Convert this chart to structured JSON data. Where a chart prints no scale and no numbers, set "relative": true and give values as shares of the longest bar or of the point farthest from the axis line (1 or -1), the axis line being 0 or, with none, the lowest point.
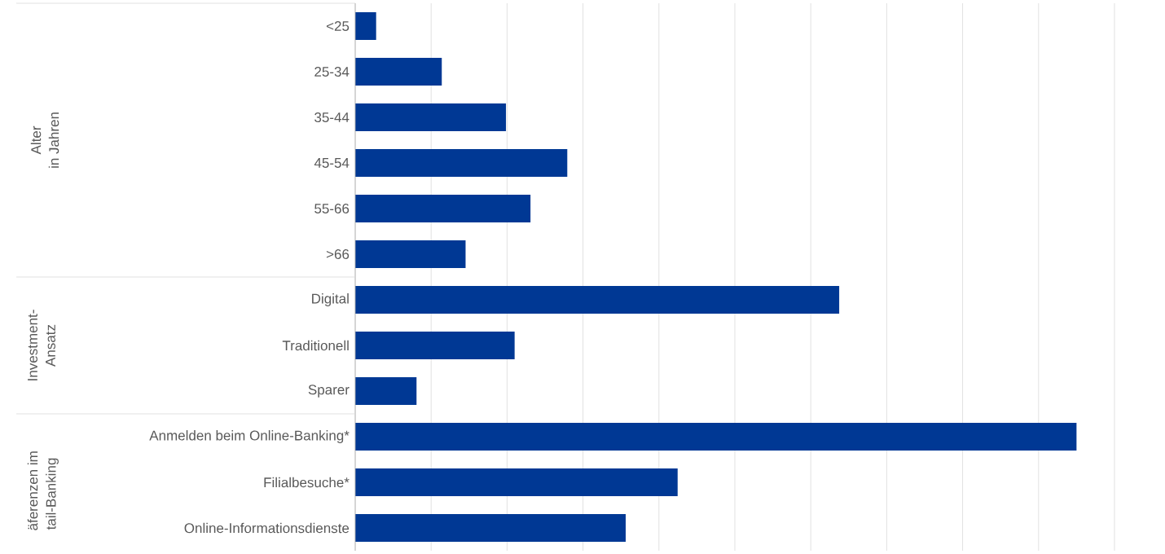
{
  "chart_data": {
    "type": "bar",
    "orientation": "horizontal",
    "relative": true,
    "grid": "x",
    "color": "#003894",
    "categories": [
      "<25",
      "25-34",
      "35-44",
      "45-54",
      "55-66",
      ">66",
      "Digital",
      "Traditionell",
      "Sparer",
      "Anmelden beim Online-Banking*",
      "Filialbesuche*",
      "Online-Informationsdienste"
    ],
    "values": [
      0.029,
      0.12,
      0.209,
      0.294,
      0.243,
      0.153,
      0.671,
      0.221,
      0.085,
      1,
      0.447,
      0.375
    ],
    "annotations": [
      "Alter",
      "in Jahren",
      "Investment-",
      "Ansatz",
      "äferenzen im",
      "tail-Banking"
    ]
  }
}
